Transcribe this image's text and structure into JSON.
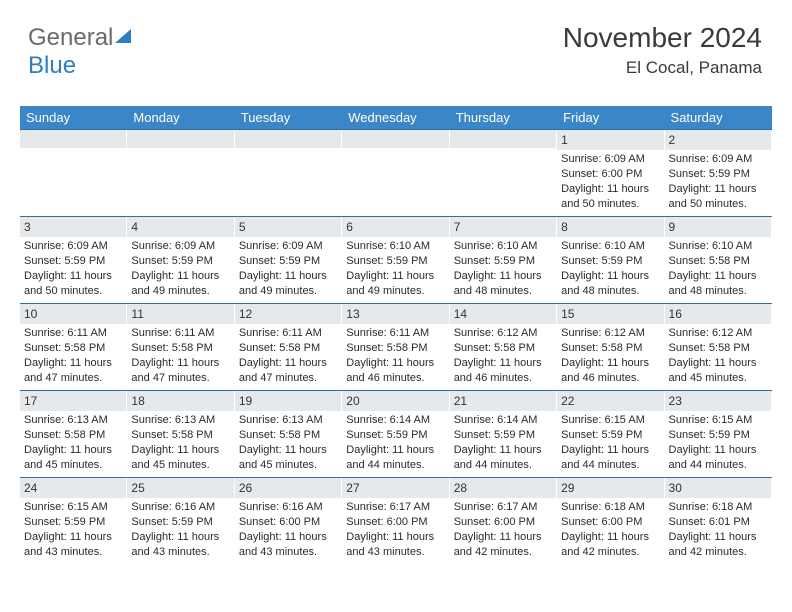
{
  "logo": {
    "part1": "General",
    "part2": "Blue"
  },
  "title": "November 2024",
  "location": "El Cocal, Panama",
  "colors": {
    "header_bg": "#3b86c6",
    "header_text": "#ffffff",
    "daynum_bg": "#e6e9ec",
    "border": "#2f6fa5",
    "text": "#2b2b2b"
  },
  "fonts": {
    "title_pt": 28,
    "location_pt": 17,
    "header_pt": 13,
    "cell_pt": 11
  },
  "day_names": [
    "Sunday",
    "Monday",
    "Tuesday",
    "Wednesday",
    "Thursday",
    "Friday",
    "Saturday"
  ],
  "weeks": [
    [
      {
        "n": "",
        "sr": "",
        "ss": "",
        "dl": ""
      },
      {
        "n": "",
        "sr": "",
        "ss": "",
        "dl": ""
      },
      {
        "n": "",
        "sr": "",
        "ss": "",
        "dl": ""
      },
      {
        "n": "",
        "sr": "",
        "ss": "",
        "dl": ""
      },
      {
        "n": "",
        "sr": "",
        "ss": "",
        "dl": ""
      },
      {
        "n": "1",
        "sr": "Sunrise: 6:09 AM",
        "ss": "Sunset: 6:00 PM",
        "dl": "Daylight: 11 hours and 50 minutes."
      },
      {
        "n": "2",
        "sr": "Sunrise: 6:09 AM",
        "ss": "Sunset: 5:59 PM",
        "dl": "Daylight: 11 hours and 50 minutes."
      }
    ],
    [
      {
        "n": "3",
        "sr": "Sunrise: 6:09 AM",
        "ss": "Sunset: 5:59 PM",
        "dl": "Daylight: 11 hours and 50 minutes."
      },
      {
        "n": "4",
        "sr": "Sunrise: 6:09 AM",
        "ss": "Sunset: 5:59 PM",
        "dl": "Daylight: 11 hours and 49 minutes."
      },
      {
        "n": "5",
        "sr": "Sunrise: 6:09 AM",
        "ss": "Sunset: 5:59 PM",
        "dl": "Daylight: 11 hours and 49 minutes."
      },
      {
        "n": "6",
        "sr": "Sunrise: 6:10 AM",
        "ss": "Sunset: 5:59 PM",
        "dl": "Daylight: 11 hours and 49 minutes."
      },
      {
        "n": "7",
        "sr": "Sunrise: 6:10 AM",
        "ss": "Sunset: 5:59 PM",
        "dl": "Daylight: 11 hours and 48 minutes."
      },
      {
        "n": "8",
        "sr": "Sunrise: 6:10 AM",
        "ss": "Sunset: 5:59 PM",
        "dl": "Daylight: 11 hours and 48 minutes."
      },
      {
        "n": "9",
        "sr": "Sunrise: 6:10 AM",
        "ss": "Sunset: 5:58 PM",
        "dl": "Daylight: 11 hours and 48 minutes."
      }
    ],
    [
      {
        "n": "10",
        "sr": "Sunrise: 6:11 AM",
        "ss": "Sunset: 5:58 PM",
        "dl": "Daylight: 11 hours and 47 minutes."
      },
      {
        "n": "11",
        "sr": "Sunrise: 6:11 AM",
        "ss": "Sunset: 5:58 PM",
        "dl": "Daylight: 11 hours and 47 minutes."
      },
      {
        "n": "12",
        "sr": "Sunrise: 6:11 AM",
        "ss": "Sunset: 5:58 PM",
        "dl": "Daylight: 11 hours and 47 minutes."
      },
      {
        "n": "13",
        "sr": "Sunrise: 6:11 AM",
        "ss": "Sunset: 5:58 PM",
        "dl": "Daylight: 11 hours and 46 minutes."
      },
      {
        "n": "14",
        "sr": "Sunrise: 6:12 AM",
        "ss": "Sunset: 5:58 PM",
        "dl": "Daylight: 11 hours and 46 minutes."
      },
      {
        "n": "15",
        "sr": "Sunrise: 6:12 AM",
        "ss": "Sunset: 5:58 PM",
        "dl": "Daylight: 11 hours and 46 minutes."
      },
      {
        "n": "16",
        "sr": "Sunrise: 6:12 AM",
        "ss": "Sunset: 5:58 PM",
        "dl": "Daylight: 11 hours and 45 minutes."
      }
    ],
    [
      {
        "n": "17",
        "sr": "Sunrise: 6:13 AM",
        "ss": "Sunset: 5:58 PM",
        "dl": "Daylight: 11 hours and 45 minutes."
      },
      {
        "n": "18",
        "sr": "Sunrise: 6:13 AM",
        "ss": "Sunset: 5:58 PM",
        "dl": "Daylight: 11 hours and 45 minutes."
      },
      {
        "n": "19",
        "sr": "Sunrise: 6:13 AM",
        "ss": "Sunset: 5:58 PM",
        "dl": "Daylight: 11 hours and 45 minutes."
      },
      {
        "n": "20",
        "sr": "Sunrise: 6:14 AM",
        "ss": "Sunset: 5:59 PM",
        "dl": "Daylight: 11 hours and 44 minutes."
      },
      {
        "n": "21",
        "sr": "Sunrise: 6:14 AM",
        "ss": "Sunset: 5:59 PM",
        "dl": "Daylight: 11 hours and 44 minutes."
      },
      {
        "n": "22",
        "sr": "Sunrise: 6:15 AM",
        "ss": "Sunset: 5:59 PM",
        "dl": "Daylight: 11 hours and 44 minutes."
      },
      {
        "n": "23",
        "sr": "Sunrise: 6:15 AM",
        "ss": "Sunset: 5:59 PM",
        "dl": "Daylight: 11 hours and 44 minutes."
      }
    ],
    [
      {
        "n": "24",
        "sr": "Sunrise: 6:15 AM",
        "ss": "Sunset: 5:59 PM",
        "dl": "Daylight: 11 hours and 43 minutes."
      },
      {
        "n": "25",
        "sr": "Sunrise: 6:16 AM",
        "ss": "Sunset: 5:59 PM",
        "dl": "Daylight: 11 hours and 43 minutes."
      },
      {
        "n": "26",
        "sr": "Sunrise: 6:16 AM",
        "ss": "Sunset: 6:00 PM",
        "dl": "Daylight: 11 hours and 43 minutes."
      },
      {
        "n": "27",
        "sr": "Sunrise: 6:17 AM",
        "ss": "Sunset: 6:00 PM",
        "dl": "Daylight: 11 hours and 43 minutes."
      },
      {
        "n": "28",
        "sr": "Sunrise: 6:17 AM",
        "ss": "Sunset: 6:00 PM",
        "dl": "Daylight: 11 hours and 42 minutes."
      },
      {
        "n": "29",
        "sr": "Sunrise: 6:18 AM",
        "ss": "Sunset: 6:00 PM",
        "dl": "Daylight: 11 hours and 42 minutes."
      },
      {
        "n": "30",
        "sr": "Sunrise: 6:18 AM",
        "ss": "Sunset: 6:01 PM",
        "dl": "Daylight: 11 hours and 42 minutes."
      }
    ]
  ]
}
